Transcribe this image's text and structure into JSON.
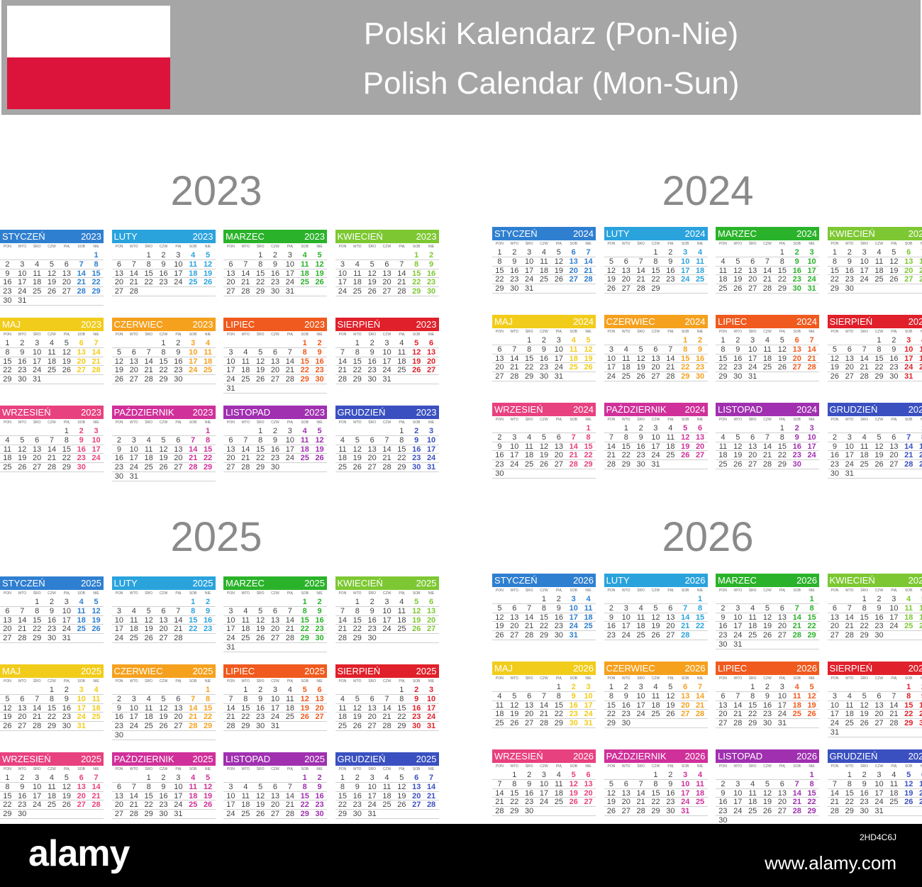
{
  "header": {
    "title_pl": "Polski Kalendarz (Pon-Nie)",
    "title_en": "Polish Calendar (Mon-Sun)",
    "flag_colors": [
      "#ffffff",
      "#dc143c"
    ]
  },
  "weekday_labels": [
    "PON",
    "WTO",
    "ŚRO",
    "CZW",
    "PIĄ",
    "SOB",
    "NIE"
  ],
  "month_names": [
    "STYCZEŃ",
    "LUTY",
    "MARZEC",
    "KWIECIEŃ",
    "MAJ",
    "CZERWIEC",
    "LIPIEC",
    "SIERPIEŃ",
    "WRZESIEŃ",
    "PAŹDZIERNIK",
    "LISTOPAD",
    "GRUDZIEŃ"
  ],
  "month_colors": [
    "#2f7fd0",
    "#2aa3dd",
    "#2ab32a",
    "#7dc832",
    "#f2cc1a",
    "#f5a11e",
    "#f05a1e",
    "#e0202a",
    "#e8417f",
    "#d0309a",
    "#a030b0",
    "#3a50c0"
  ],
  "years": [
    {
      "year": "2023",
      "start_weekdays": [
        6,
        2,
        2,
        5,
        0,
        3,
        5,
        1,
        4,
        6,
        2,
        4
      ]
    },
    {
      "year": "2024",
      "start_weekdays": [
        0,
        3,
        4,
        0,
        2,
        5,
        0,
        3,
        6,
        1,
        4,
        6
      ]
    },
    {
      "year": "2025",
      "start_weekdays": [
        2,
        5,
        5,
        1,
        3,
        6,
        1,
        4,
        0,
        2,
        5,
        0
      ]
    },
    {
      "year": "2026",
      "start_weekdays": [
        3,
        6,
        6,
        2,
        4,
        0,
        2,
        5,
        1,
        3,
        6,
        1
      ]
    }
  ],
  "footer": {
    "logo": "alamy",
    "image_code": "2HD4C6J",
    "site": "www.alamy.com"
  }
}
